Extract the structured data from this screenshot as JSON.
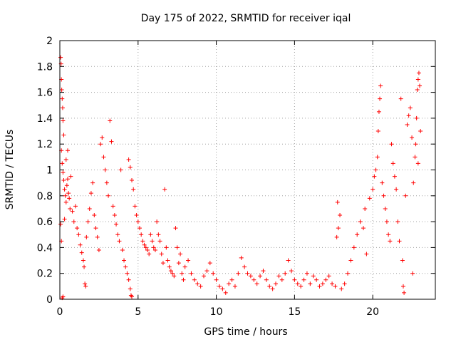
{
  "chart_data": {
    "type": "scatter",
    "title": "Day 175 of 2022, SRMTID for receiver iqal",
    "xlabel": "GPS time / hours",
    "ylabel": "SRMTID / TECUs",
    "xlim": [
      0,
      24
    ],
    "ylim": [
      0,
      2
    ],
    "xticks": [
      0,
      5,
      10,
      15,
      20
    ],
    "yticks": [
      0,
      0.2,
      0.4,
      0.6,
      0.8,
      1,
      1.2,
      1.4,
      1.6,
      1.8,
      2
    ],
    "grid": true,
    "marker": "+",
    "color": "#ff0000",
    "series": [
      {
        "name": "SRMTID",
        "points": [
          [
            0.05,
            1.87
          ],
          [
            0.08,
            1.82
          ],
          [
            0.1,
            1.7
          ],
          [
            0.12,
            1.62
          ],
          [
            0.15,
            1.55
          ],
          [
            0.18,
            1.48
          ],
          [
            0.2,
            1.38
          ],
          [
            0.25,
            1.27
          ],
          [
            0.1,
            1.15
          ],
          [
            0.15,
            1.05
          ],
          [
            0.2,
            0.98
          ],
          [
            0.25,
            0.92
          ],
          [
            0.3,
            0.85
          ],
          [
            0.35,
            0.8
          ],
          [
            0.4,
            0.75
          ],
          [
            0.45,
            0.88
          ],
          [
            0.5,
            0.93
          ],
          [
            0.55,
            0.82
          ],
          [
            0.6,
            0.78
          ],
          [
            0.65,
            0.7
          ],
          [
            0.05,
            0.58
          ],
          [
            0.1,
            0.45
          ],
          [
            0.15,
            0.01
          ],
          [
            0.2,
            0.02
          ],
          [
            0.3,
            0.62
          ],
          [
            0.4,
            1.08
          ],
          [
            0.5,
            1.15
          ],
          [
            0.7,
            0.95
          ],
          [
            0.8,
            0.68
          ],
          [
            0.9,
            0.6
          ],
          [
            1.0,
            0.72
          ],
          [
            1.1,
            0.55
          ],
          [
            1.2,
            0.5
          ],
          [
            1.3,
            0.42
          ],
          [
            1.4,
            0.36
          ],
          [
            1.5,
            0.3
          ],
          [
            1.55,
            0.25
          ],
          [
            1.6,
            0.12
          ],
          [
            1.65,
            0.1
          ],
          [
            1.7,
            0.48
          ],
          [
            1.8,
            0.6
          ],
          [
            1.9,
            0.7
          ],
          [
            2.0,
            0.82
          ],
          [
            2.1,
            0.9
          ],
          [
            2.2,
            0.65
          ],
          [
            2.3,
            0.55
          ],
          [
            2.4,
            0.48
          ],
          [
            2.5,
            0.38
          ],
          [
            2.6,
            1.2
          ],
          [
            2.7,
            1.25
          ],
          [
            2.8,
            1.1
          ],
          [
            2.9,
            1.0
          ],
          [
            3.0,
            0.9
          ],
          [
            3.1,
            0.8
          ],
          [
            3.2,
            1.38
          ],
          [
            3.3,
            1.22
          ],
          [
            3.4,
            0.72
          ],
          [
            3.5,
            0.65
          ],
          [
            3.6,
            0.58
          ],
          [
            3.7,
            0.5
          ],
          [
            3.8,
            0.45
          ],
          [
            3.9,
            1.0
          ],
          [
            4.0,
            0.38
          ],
          [
            4.1,
            0.3
          ],
          [
            4.2,
            0.25
          ],
          [
            4.3,
            0.2
          ],
          [
            4.4,
            0.15
          ],
          [
            4.5,
            0.08
          ],
          [
            4.55,
            0.03
          ],
          [
            4.6,
            0.02
          ],
          [
            4.4,
            1.08
          ],
          [
            4.5,
            1.02
          ],
          [
            4.6,
            0.92
          ],
          [
            4.7,
            0.85
          ],
          [
            4.8,
            0.72
          ],
          [
            4.9,
            0.65
          ],
          [
            5.0,
            0.6
          ],
          [
            5.1,
            0.55
          ],
          [
            5.2,
            0.5
          ],
          [
            5.3,
            0.45
          ],
          [
            5.4,
            0.42
          ],
          [
            5.5,
            0.4
          ],
          [
            5.6,
            0.38
          ],
          [
            5.7,
            0.35
          ],
          [
            5.8,
            0.5
          ],
          [
            5.9,
            0.45
          ],
          [
            6.0,
            0.4
          ],
          [
            6.1,
            0.38
          ],
          [
            6.2,
            0.6
          ],
          [
            6.3,
            0.5
          ],
          [
            6.4,
            0.45
          ],
          [
            6.5,
            0.35
          ],
          [
            6.6,
            0.28
          ],
          [
            6.7,
            0.85
          ],
          [
            6.8,
            0.4
          ],
          [
            6.9,
            0.3
          ],
          [
            7.0,
            0.25
          ],
          [
            7.1,
            0.22
          ],
          [
            7.2,
            0.2
          ],
          [
            7.3,
            0.18
          ],
          [
            7.4,
            0.55
          ],
          [
            7.5,
            0.4
          ],
          [
            7.6,
            0.28
          ],
          [
            7.7,
            0.35
          ],
          [
            7.8,
            0.2
          ],
          [
            7.9,
            0.15
          ],
          [
            8.0,
            0.25
          ],
          [
            8.2,
            0.3
          ],
          [
            8.4,
            0.2
          ],
          [
            8.6,
            0.15
          ],
          [
            8.8,
            0.12
          ],
          [
            9.0,
            0.1
          ],
          [
            9.2,
            0.18
          ],
          [
            9.4,
            0.22
          ],
          [
            9.6,
            0.28
          ],
          [
            9.8,
            0.2
          ],
          [
            10.0,
            0.15
          ],
          [
            10.2,
            0.1
          ],
          [
            10.4,
            0.08
          ],
          [
            10.6,
            0.05
          ],
          [
            10.8,
            0.12
          ],
          [
            11.0,
            0.15
          ],
          [
            11.2,
            0.1
          ],
          [
            11.4,
            0.2
          ],
          [
            11.6,
            0.32
          ],
          [
            11.8,
            0.25
          ],
          [
            12.0,
            0.2
          ],
          [
            12.2,
            0.18
          ],
          [
            12.4,
            0.15
          ],
          [
            12.6,
            0.12
          ],
          [
            12.8,
            0.18
          ],
          [
            13.0,
            0.22
          ],
          [
            13.2,
            0.15
          ],
          [
            13.4,
            0.1
          ],
          [
            13.6,
            0.08
          ],
          [
            13.8,
            0.12
          ],
          [
            14.0,
            0.18
          ],
          [
            14.2,
            0.15
          ],
          [
            14.4,
            0.2
          ],
          [
            14.6,
            0.3
          ],
          [
            14.8,
            0.22
          ],
          [
            15.0,
            0.15
          ],
          [
            15.2,
            0.12
          ],
          [
            15.4,
            0.1
          ],
          [
            15.6,
            0.15
          ],
          [
            15.8,
            0.2
          ],
          [
            16.0,
            0.12
          ],
          [
            16.2,
            0.18
          ],
          [
            16.4,
            0.15
          ],
          [
            16.6,
            0.1
          ],
          [
            16.8,
            0.12
          ],
          [
            17.0,
            0.15
          ],
          [
            17.2,
            0.18
          ],
          [
            17.4,
            0.12
          ],
          [
            17.6,
            0.1
          ],
          [
            17.7,
            0.48
          ],
          [
            17.8,
            0.55
          ],
          [
            17.9,
            0.65
          ],
          [
            17.75,
            0.75
          ],
          [
            18.0,
            0.08
          ],
          [
            18.2,
            0.12
          ],
          [
            18.4,
            0.2
          ],
          [
            18.6,
            0.3
          ],
          [
            18.8,
            0.4
          ],
          [
            19.0,
            0.5
          ],
          [
            19.2,
            0.6
          ],
          [
            19.4,
            0.55
          ],
          [
            19.5,
            0.7
          ],
          [
            19.6,
            0.35
          ],
          [
            19.8,
            0.78
          ],
          [
            20.0,
            0.85
          ],
          [
            20.1,
            0.95
          ],
          [
            20.2,
            1.0
          ],
          [
            20.3,
            1.1
          ],
          [
            20.35,
            1.3
          ],
          [
            20.4,
            1.45
          ],
          [
            20.45,
            1.55
          ],
          [
            20.5,
            1.65
          ],
          [
            20.6,
            0.9
          ],
          [
            20.7,
            0.8
          ],
          [
            20.8,
            0.7
          ],
          [
            20.9,
            0.6
          ],
          [
            21.0,
            0.5
          ],
          [
            21.1,
            0.45
          ],
          [
            21.2,
            1.2
          ],
          [
            21.3,
            1.05
          ],
          [
            21.4,
            0.95
          ],
          [
            21.5,
            0.85
          ],
          [
            21.6,
            0.6
          ],
          [
            21.7,
            0.45
          ],
          [
            21.8,
            1.55
          ],
          [
            21.9,
            0.3
          ],
          [
            21.95,
            0.1
          ],
          [
            22.0,
            0.05
          ],
          [
            22.1,
            0.8
          ],
          [
            22.2,
            1.35
          ],
          [
            22.3,
            1.42
          ],
          [
            22.4,
            1.48
          ],
          [
            22.5,
            1.25
          ],
          [
            22.55,
            0.2
          ],
          [
            22.6,
            0.9
          ],
          [
            22.7,
            1.1
          ],
          [
            22.75,
            1.2
          ],
          [
            22.8,
            1.4
          ],
          [
            22.85,
            1.62
          ],
          [
            22.9,
            1.7
          ],
          [
            22.95,
            1.75
          ],
          [
            23.0,
            1.65
          ],
          [
            23.05,
            1.3
          ],
          [
            22.9,
            1.05
          ]
        ]
      }
    ]
  }
}
